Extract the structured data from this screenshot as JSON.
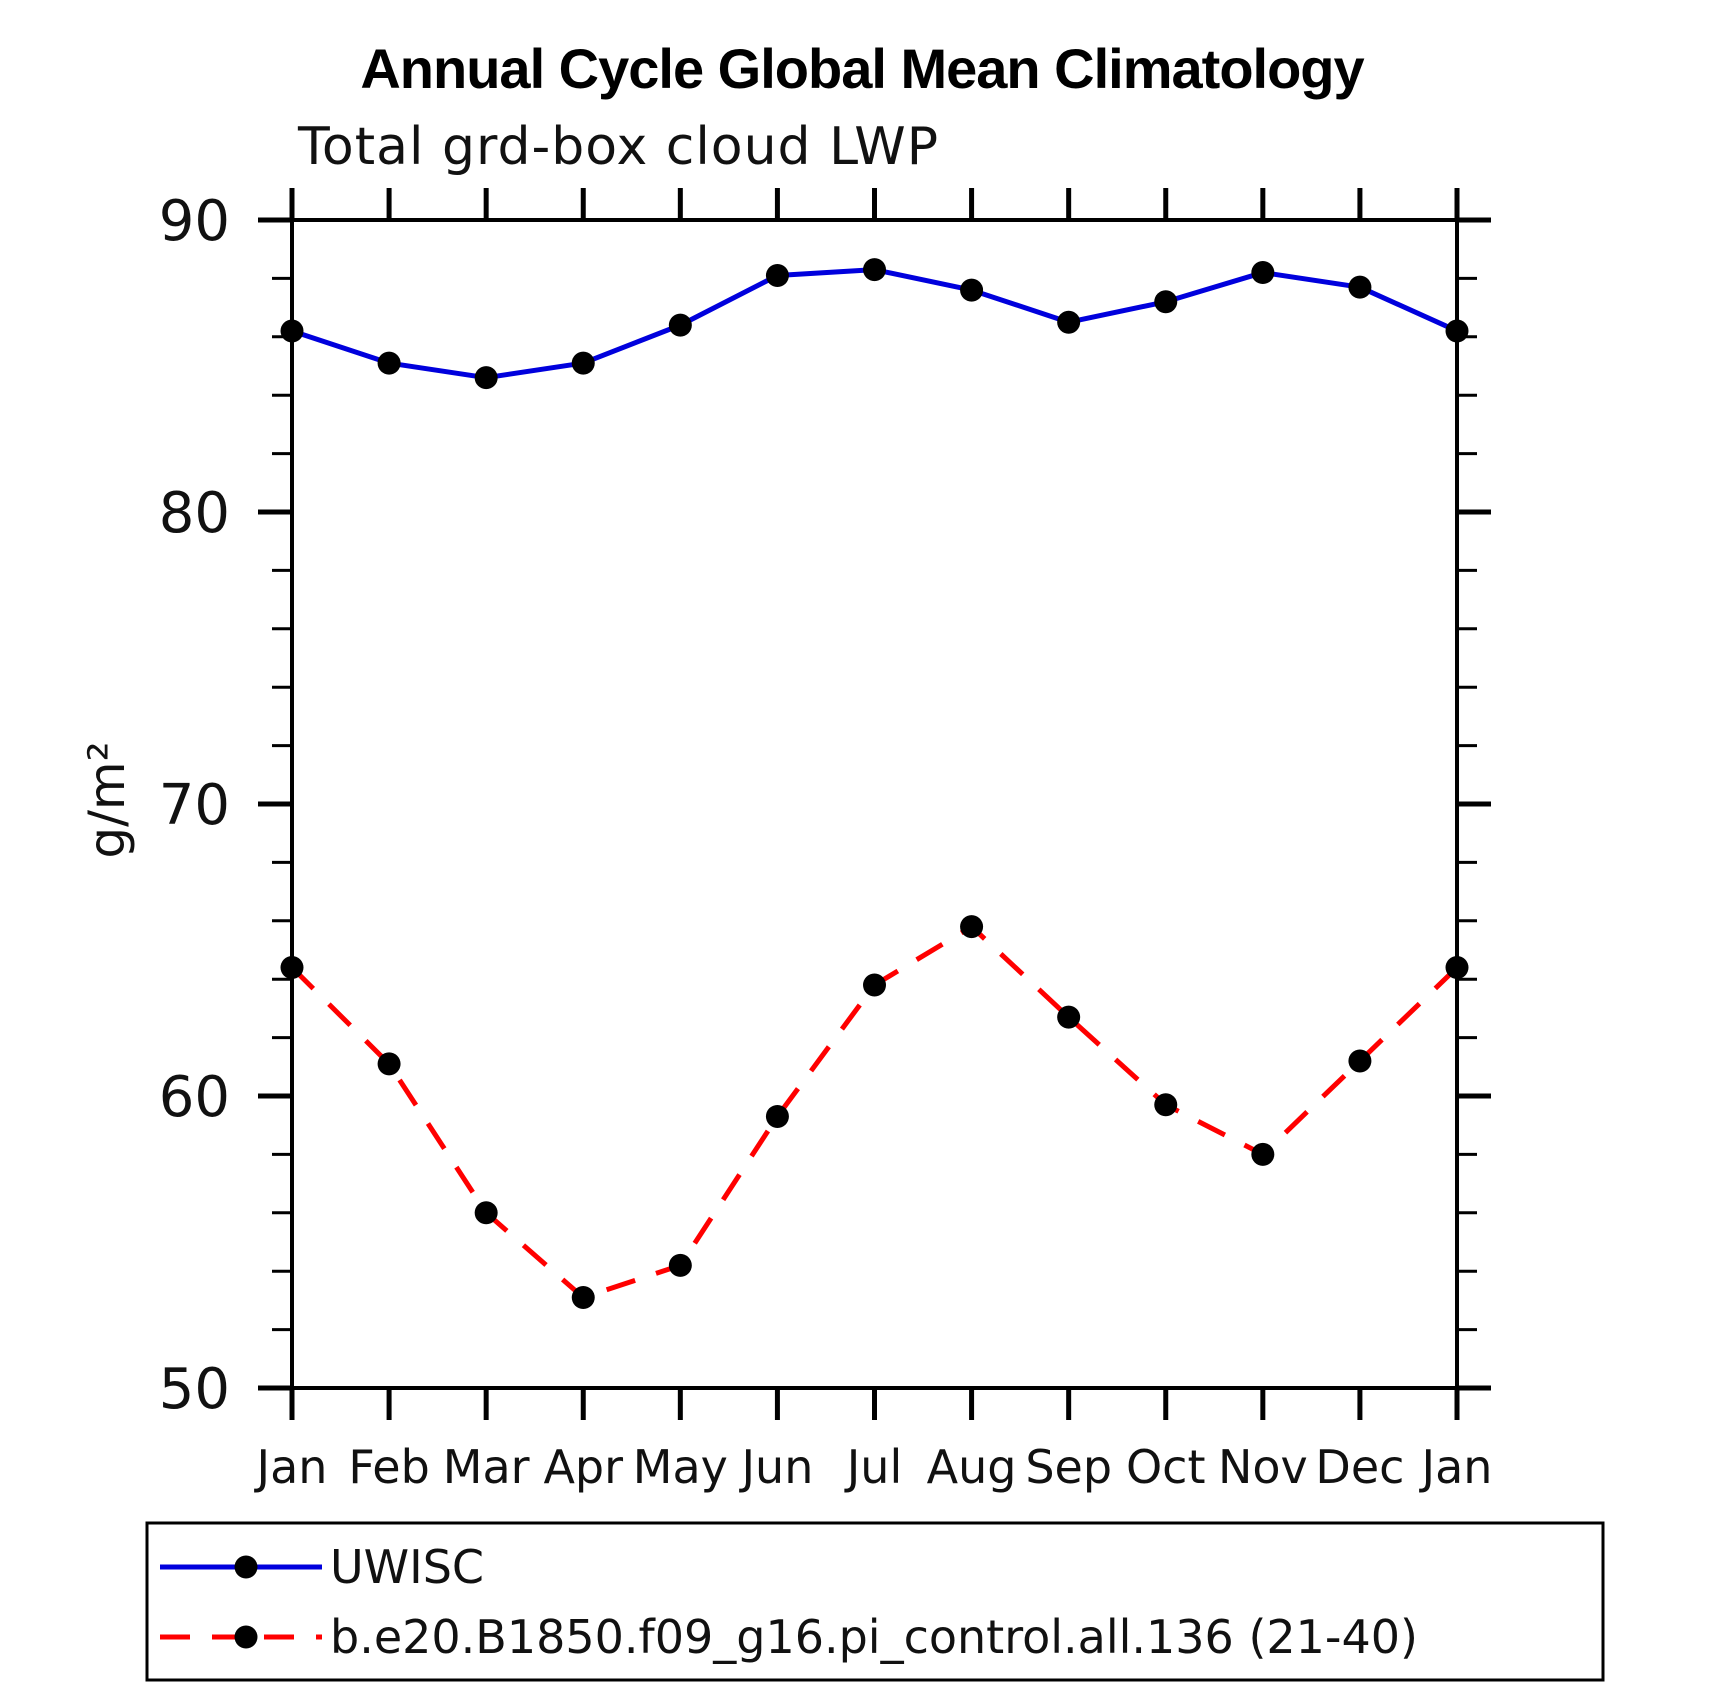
{
  "title": "Annual Cycle Global Mean Climatology",
  "subtitle": "Total grd-box cloud LWP",
  "chart_data": {
    "type": "line",
    "title": "Annual Cycle Global Mean Climatology",
    "subtitle": "Total grd-box cloud LWP",
    "xlabel": "",
    "ylabel": "g/m²",
    "categories": [
      "Jan",
      "Feb",
      "Mar",
      "Apr",
      "May",
      "Jun",
      "Jul",
      "Aug",
      "Sep",
      "Oct",
      "Nov",
      "Dec",
      "Jan"
    ],
    "ylim": [
      50,
      90
    ],
    "ytick_major": [
      50,
      60,
      70,
      80,
      90
    ],
    "ytick_minor_step": 2,
    "grid": false,
    "legend_position": "bottom-left-box",
    "axis_color": "#000000",
    "marker_color": "#000000",
    "series": [
      {
        "name": "UWISC",
        "color": "#0000dd",
        "style": "solid",
        "marker": "circle",
        "values": [
          86.2,
          85.1,
          84.6,
          85.1,
          86.4,
          88.1,
          88.3,
          87.6,
          86.5,
          87.2,
          88.2,
          87.7,
          86.2
        ]
      },
      {
        "name": "b.e20.B1850.f09_g16.pi_control.all.136 (21-40)",
        "color": "#ff0000",
        "style": "dashed",
        "marker": "circle",
        "values": [
          64.4,
          61.1,
          56.0,
          53.1,
          54.2,
          59.3,
          63.8,
          65.8,
          62.7,
          59.7,
          58.0,
          61.2,
          64.4
        ]
      }
    ]
  }
}
